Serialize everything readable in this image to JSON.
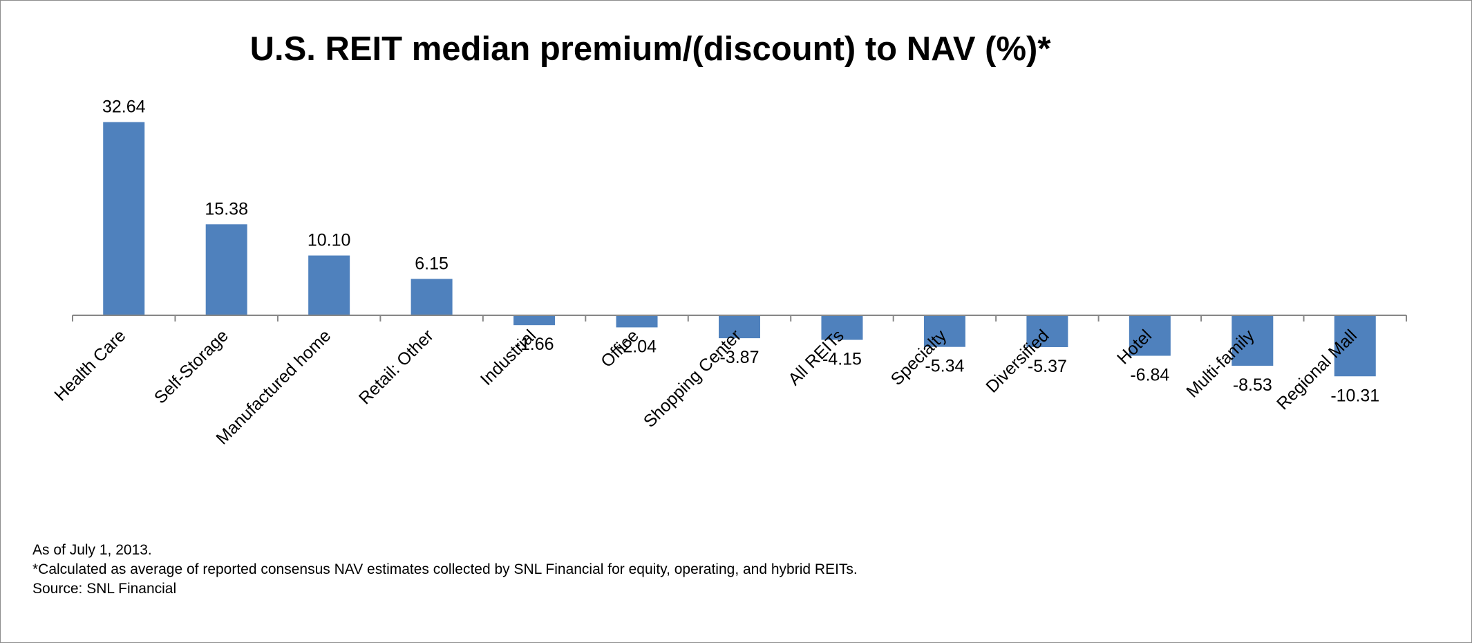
{
  "chart_data": {
    "type": "bar",
    "title": "U.S. REIT median premium/(discount) to NAV (%)*",
    "categories": [
      "Health Care",
      "Self-Storage",
      "Manufactured home",
      "Retail: Other",
      "Industrial",
      "Office",
      "Shopping Center",
      "All REITs",
      "Specialty",
      "Diversified",
      "Hotel",
      "Multi-family",
      "Regional Mall"
    ],
    "values": [
      32.64,
      15.38,
      10.1,
      6.15,
      -1.66,
      -2.04,
      -3.87,
      -4.15,
      -5.34,
      -5.37,
      -6.84,
      -8.53,
      -10.31
    ],
    "value_labels": [
      "32.64",
      "15.38",
      "10.10",
      "6.15",
      "-1.66",
      "-2.04",
      "-3.87",
      "-4.15",
      "-5.34",
      "-5.37",
      "-6.84",
      "-8.53",
      "-10.31"
    ],
    "xlabel": "",
    "ylabel": "",
    "grid": false,
    "legend": "none",
    "bar_color": "#4f81bd",
    "axis_color": "#868686"
  },
  "footnotes": {
    "as_of": "As of July 1, 2013.",
    "calc_note": "*Calculated as average of reported consensus NAV estimates  collected by SNL Financial for equity, operating, and hybrid REITs.",
    "source": "Source: SNL Financial"
  }
}
